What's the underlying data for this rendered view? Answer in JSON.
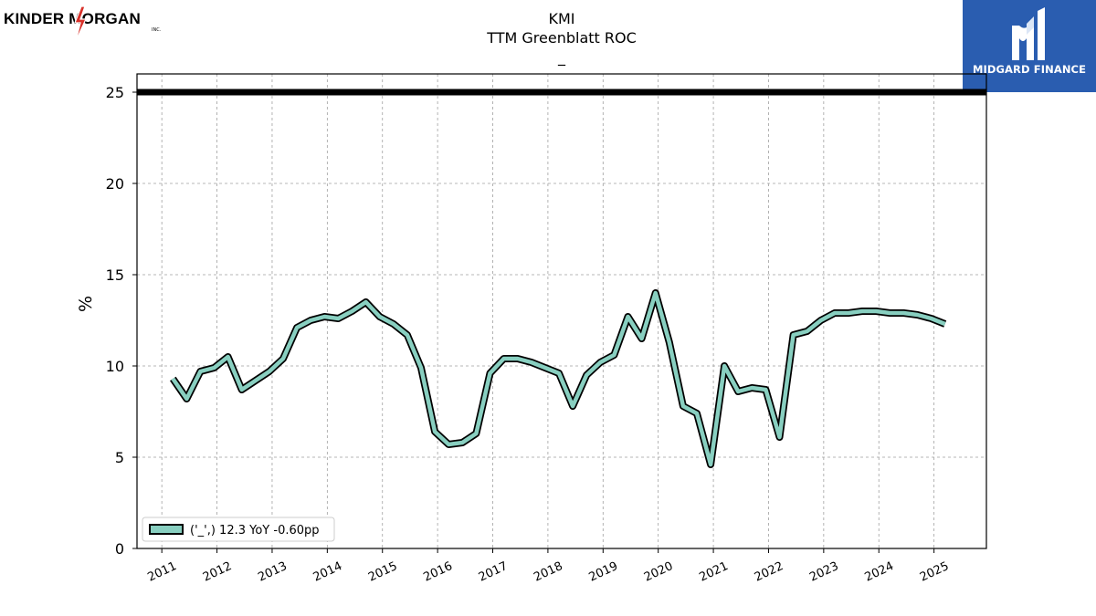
{
  "header": {
    "company_logo_text": "KINDER MORGAN",
    "company_logo_inc": "INC.",
    "publisher_logo_text": "MIDGARD FINANCE"
  },
  "chart_data": {
    "type": "line",
    "title": "KMI",
    "subtitle": "TTM Greenblatt ROC",
    "subtitle2": "_",
    "xlabel": "",
    "ylabel": "%",
    "ylim": [
      0,
      26
    ],
    "xlim": [
      2010.55,
      2025.95
    ],
    "grid": true,
    "yticks": [
      0,
      5,
      10,
      15,
      20,
      25
    ],
    "xticks": [
      2011,
      2012,
      2013,
      2014,
      2015,
      2016,
      2017,
      2018,
      2019,
      2020,
      2021,
      2022,
      2023,
      2024,
      2025
    ],
    "xtick_labels": [
      "2011",
      "2012",
      "2013",
      "2014",
      "2015",
      "2016",
      "2017",
      "2018",
      "2019",
      "2020",
      "2021",
      "2022",
      "2023",
      "2024",
      "2025"
    ],
    "reference_line": {
      "y": 25,
      "color": "#000000"
    },
    "legend": {
      "placement": "lower-left",
      "label": "('_',) 12.3 YoY -0.60pp"
    },
    "series": [
      {
        "color": "#88cfc0",
        "edge_color": "#000000",
        "points": [
          [
            2011.2,
            9.3
          ],
          [
            2011.45,
            8.2
          ],
          [
            2011.7,
            9.7
          ],
          [
            2011.95,
            9.9
          ],
          [
            2012.2,
            10.5
          ],
          [
            2012.45,
            8.7
          ],
          [
            2012.7,
            9.2
          ],
          [
            2012.95,
            9.7
          ],
          [
            2013.2,
            10.4
          ],
          [
            2013.45,
            12.1
          ],
          [
            2013.7,
            12.5
          ],
          [
            2013.95,
            12.7
          ],
          [
            2014.2,
            12.6
          ],
          [
            2014.45,
            13.0
          ],
          [
            2014.7,
            13.5
          ],
          [
            2014.95,
            12.7
          ],
          [
            2015.2,
            12.3
          ],
          [
            2015.45,
            11.7
          ],
          [
            2015.7,
            9.9
          ],
          [
            2015.95,
            6.4
          ],
          [
            2016.2,
            5.7
          ],
          [
            2016.45,
            5.8
          ],
          [
            2016.7,
            6.3
          ],
          [
            2016.95,
            9.6
          ],
          [
            2017.2,
            10.4
          ],
          [
            2017.45,
            10.4
          ],
          [
            2017.7,
            10.2
          ],
          [
            2017.95,
            9.9
          ],
          [
            2018.2,
            9.6
          ],
          [
            2018.45,
            7.8
          ],
          [
            2018.7,
            9.5
          ],
          [
            2018.95,
            10.2
          ],
          [
            2019.2,
            10.6
          ],
          [
            2019.45,
            12.7
          ],
          [
            2019.7,
            11.5
          ],
          [
            2019.95,
            14.0
          ],
          [
            2020.2,
            11.3
          ],
          [
            2020.45,
            7.8
          ],
          [
            2020.7,
            7.4
          ],
          [
            2020.95,
            4.6
          ],
          [
            2021.2,
            10.0
          ],
          [
            2021.45,
            8.6
          ],
          [
            2021.7,
            8.8
          ],
          [
            2021.95,
            8.7
          ],
          [
            2022.2,
            6.1
          ],
          [
            2022.45,
            11.7
          ],
          [
            2022.7,
            11.9
          ],
          [
            2022.95,
            12.5
          ],
          [
            2023.2,
            12.9
          ],
          [
            2023.45,
            12.9
          ],
          [
            2023.7,
            13.0
          ],
          [
            2023.95,
            13.0
          ],
          [
            2024.2,
            12.9
          ],
          [
            2024.45,
            12.9
          ],
          [
            2024.7,
            12.8
          ],
          [
            2024.95,
            12.6
          ],
          [
            2025.2,
            12.3
          ]
        ]
      }
    ]
  }
}
